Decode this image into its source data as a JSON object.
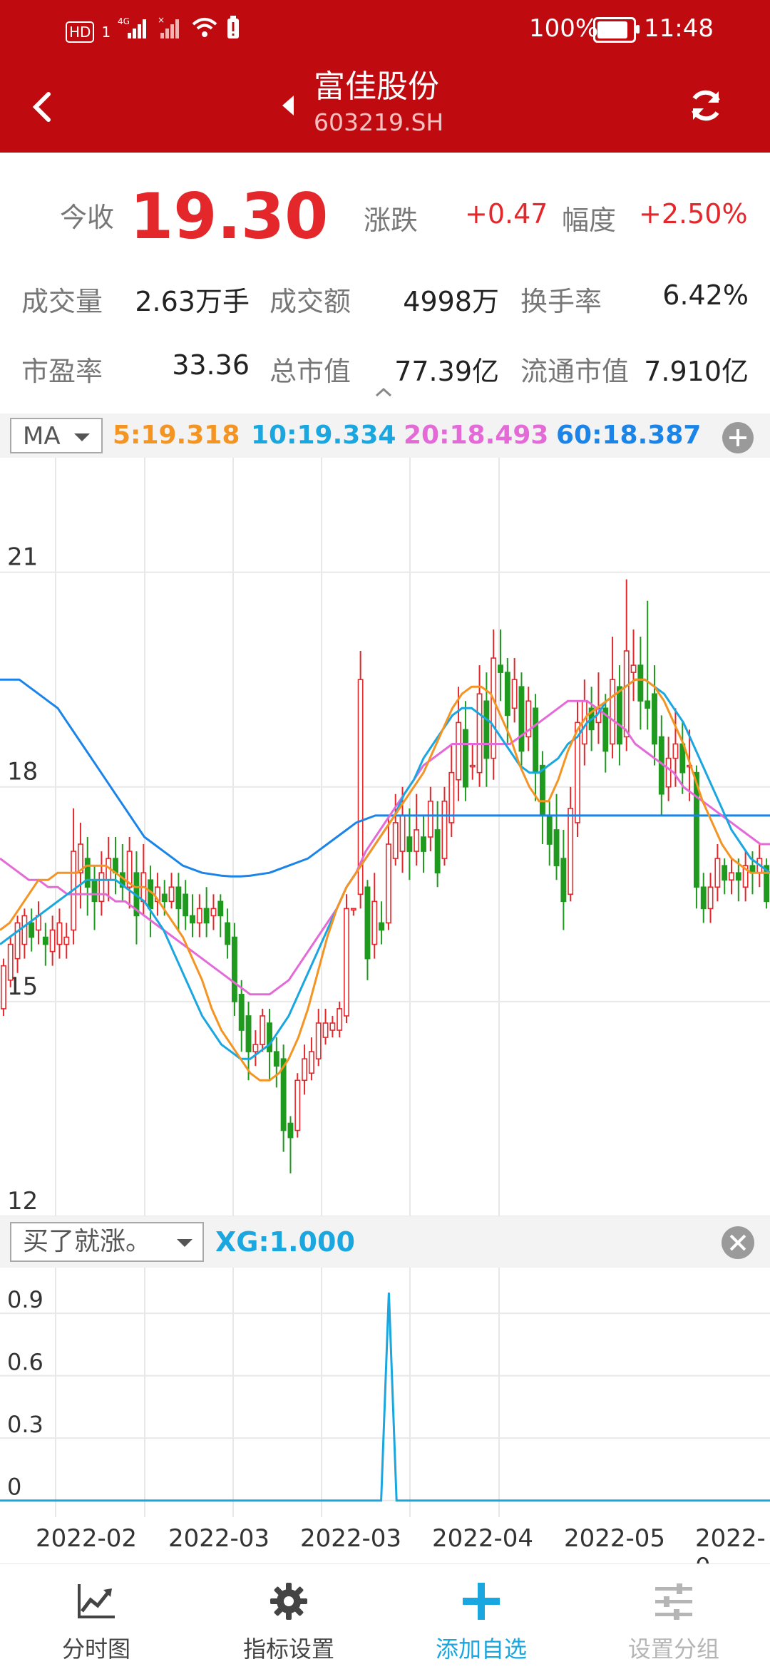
{
  "status_bar": {
    "battery_pct": "100%",
    "battery_level": 1.0,
    "time": "11:48",
    "left_icons": [
      "HD",
      "1",
      "4G",
      "signal-icon",
      "signal-icon",
      "wifi-icon",
      "battery-alert-icon"
    ]
  },
  "header": {
    "title": "富佳股份",
    "code": "603219.SH"
  },
  "quote": {
    "close_label": "今收",
    "close_value": "19.30",
    "change_label": "涨跌",
    "change_value": "+0.47",
    "pct_label": "幅度",
    "pct_value": "+2.50%",
    "vol_label": "成交量",
    "vol_value": "2.63万手",
    "amt_label": "成交额",
    "amt_value": "4998万",
    "turnover_label": "换手率",
    "turnover_value": "6.42%",
    "pe_label": "市盈率",
    "pe_value": "33.36",
    "mcap_label": "总市值",
    "mcap_value": "77.39亿",
    "float_label": "流通市值",
    "float_value": "7.910亿"
  },
  "ma_bar": {
    "selector": "MA",
    "ma5": "5:19.318",
    "ma10": "10:19.334",
    "ma20": "20:18.493",
    "ma60": "60:18.387",
    "colors": {
      "ma5": "#f39423",
      "ma10": "#1aa6df",
      "ma20": "#e46ad8",
      "ma60": "#1b84e8"
    }
  },
  "xg_bar": {
    "selector": "买了就涨。",
    "value": "XG:1.000"
  },
  "colors": {
    "header_bg": "#bf0a10",
    "up": "#e4272b",
    "down": "#1f9a1f"
  },
  "chart_data": [
    {
      "type": "candlestick",
      "yticks": [
        "21",
        "18",
        "15",
        "12"
      ],
      "ylim": [
        12,
        22.6
      ],
      "grid": true,
      "candles": [
        [
          14.9,
          15.5,
          14.8,
          15.6
        ],
        [
          15.3,
          15.8,
          15.2,
          15.9
        ],
        [
          15.6,
          16.1,
          15.4,
          16.2
        ],
        [
          15.8,
          16.2,
          15.6,
          16.3
        ],
        [
          16.1,
          15.9,
          15.7,
          16.3
        ],
        [
          16.0,
          16.2,
          15.8,
          16.4
        ],
        [
          15.9,
          15.8,
          15.5,
          16.1
        ],
        [
          15.7,
          16.0,
          15.5,
          16.2
        ],
        [
          15.8,
          16.1,
          15.6,
          16.3
        ],
        [
          15.8,
          15.9,
          15.6,
          16.1
        ],
        [
          16.0,
          17.1,
          15.8,
          17.7
        ],
        [
          16.8,
          17.2,
          16.3,
          17.5
        ],
        [
          17.0,
          16.6,
          16.2,
          17.3
        ],
        [
          16.7,
          16.4,
          16.0,
          16.9
        ],
        [
          16.4,
          16.8,
          16.2,
          17.1
        ],
        [
          16.7,
          17.0,
          16.4,
          17.3
        ],
        [
          17.0,
          16.8,
          16.5,
          17.3
        ],
        [
          16.8,
          16.6,
          16.4,
          17.2
        ],
        [
          16.6,
          17.1,
          16.3,
          17.3
        ],
        [
          16.8,
          16.2,
          15.8,
          17.1
        ],
        [
          16.4,
          16.8,
          16.2,
          17.2
        ],
        [
          16.7,
          16.3,
          15.9,
          16.9
        ],
        [
          16.4,
          16.6,
          16.2,
          16.8
        ],
        [
          16.5,
          16.4,
          16.2,
          16.7
        ],
        [
          16.4,
          16.6,
          16.3,
          16.8
        ],
        [
          16.6,
          16.3,
          16.0,
          16.8
        ],
        [
          16.5,
          16.2,
          16.0,
          16.7
        ],
        [
          16.2,
          16.1,
          15.9,
          16.5
        ],
        [
          16.1,
          16.3,
          15.9,
          16.5
        ],
        [
          16.3,
          16.1,
          15.9,
          16.6
        ],
        [
          16.2,
          16.3,
          16.0,
          16.5
        ],
        [
          16.4,
          16.2,
          15.9,
          16.5
        ],
        [
          16.1,
          15.8,
          15.6,
          16.3
        ],
        [
          15.9,
          15.0,
          14.8,
          16.1
        ],
        [
          15.1,
          14.6,
          14.3,
          15.3
        ],
        [
          14.8,
          14.3,
          13.9,
          15.0
        ],
        [
          14.3,
          14.4,
          14.1,
          14.6
        ],
        [
          14.4,
          14.8,
          14.3,
          14.9
        ],
        [
          14.7,
          14.3,
          13.9,
          14.9
        ],
        [
          14.3,
          14.1,
          13.8,
          14.5
        ],
        [
          14.2,
          13.2,
          12.9,
          14.4
        ],
        [
          13.3,
          13.1,
          12.6,
          13.4
        ],
        [
          13.2,
          13.9,
          13.1,
          14.0
        ],
        [
          13.9,
          14.2,
          13.7,
          14.4
        ],
        [
          14.0,
          14.3,
          13.9,
          14.5
        ],
        [
          14.2,
          14.7,
          14.1,
          14.9
        ],
        [
          14.5,
          14.7,
          14.4,
          14.9
        ],
        [
          14.6,
          14.7,
          14.5,
          14.8
        ],
        [
          14.6,
          14.9,
          14.5,
          15.0
        ],
        [
          14.8,
          16.3,
          14.7,
          16.5
        ],
        [
          16.3,
          16.3,
          16.2,
          16.3
        ],
        [
          16.5,
          19.5,
          16.3,
          19.9
        ],
        [
          16.6,
          15.6,
          15.3,
          16.7
        ],
        [
          15.8,
          16.4,
          15.6,
          16.8
        ],
        [
          16.1,
          16.0,
          15.8,
          16.4
        ],
        [
          16.1,
          17.2,
          16.0,
          17.6
        ],
        [
          17.0,
          17.5,
          16.9,
          17.9
        ],
        [
          17.1,
          17.6,
          16.8,
          18.0
        ],
        [
          17.3,
          17.1,
          16.7,
          17.7
        ],
        [
          17.1,
          17.4,
          16.9,
          17.9
        ],
        [
          17.3,
          17.1,
          16.8,
          17.6
        ],
        [
          17.3,
          17.8,
          17.1,
          18.0
        ],
        [
          17.4,
          16.8,
          16.6,
          17.8
        ],
        [
          17.0,
          17.8,
          16.9,
          18.0
        ],
        [
          17.5,
          18.2,
          17.3,
          18.6
        ],
        [
          18.1,
          18.9,
          17.8,
          19.4
        ],
        [
          18.8,
          18.0,
          17.8,
          19.2
        ],
        [
          18.3,
          18.3,
          18.1,
          18.6
        ],
        [
          18.2,
          19.3,
          18.0,
          19.7
        ],
        [
          19.2,
          18.4,
          18.0,
          19.6
        ],
        [
          18.4,
          19.8,
          18.1,
          20.2
        ],
        [
          19.7,
          19.6,
          19.2,
          20.2
        ],
        [
          19.6,
          19.0,
          18.6,
          19.8
        ],
        [
          19.1,
          19.5,
          18.9,
          19.8
        ],
        [
          19.4,
          18.5,
          18.3,
          19.6
        ],
        [
          18.7,
          19.2,
          18.5,
          19.4
        ],
        [
          19.1,
          18.2,
          17.8,
          19.3
        ],
        [
          18.3,
          17.6,
          17.2,
          18.5
        ],
        [
          17.6,
          17.2,
          16.9,
          17.8
        ],
        [
          17.4,
          16.9,
          16.7,
          17.9
        ],
        [
          17.0,
          16.4,
          16.0,
          17.4
        ],
        [
          16.5,
          17.7,
          16.4,
          18.0
        ],
        [
          17.5,
          18.9,
          17.3,
          19.2
        ],
        [
          18.6,
          19.2,
          18.3,
          19.5
        ],
        [
          19.1,
          18.8,
          18.5,
          19.4
        ],
        [
          18.9,
          19.1,
          18.6,
          19.6
        ],
        [
          19.1,
          18.5,
          18.2,
          19.3
        ],
        [
          18.6,
          19.5,
          18.4,
          20.1
        ],
        [
          19.4,
          18.6,
          18.3,
          19.7
        ],
        [
          18.7,
          19.9,
          18.5,
          20.9
        ],
        [
          19.6,
          19.7,
          19.2,
          20.2
        ],
        [
          19.7,
          19.2,
          18.8,
          20.1
        ],
        [
          19.2,
          19.1,
          18.8,
          20.6
        ],
        [
          19.3,
          18.6,
          18.3,
          19.7
        ],
        [
          18.7,
          17.9,
          17.6,
          19.0
        ],
        [
          18.0,
          18.4,
          17.8,
          18.7
        ],
        [
          18.4,
          18.6,
          18.0,
          19.1
        ],
        [
          18.6,
          18.2,
          17.9,
          18.9
        ],
        [
          18.3,
          18.3,
          17.8,
          18.8
        ],
        [
          18.2,
          16.6,
          16.3,
          18.3
        ],
        [
          16.6,
          16.3,
          16.1,
          16.8
        ],
        [
          16.3,
          16.6,
          16.1,
          16.8
        ],
        [
          16.6,
          17.0,
          16.4,
          17.2
        ],
        [
          16.9,
          16.7,
          16.5,
          17.0
        ],
        [
          16.7,
          16.8,
          16.5,
          17.0
        ],
        [
          16.8,
          16.7,
          16.4,
          17.0
        ],
        [
          16.6,
          16.9,
          16.4,
          17.1
        ],
        [
          16.9,
          16.8,
          16.5,
          17.1
        ],
        [
          16.8,
          17.0,
          16.6,
          17.2
        ],
        [
          16.9,
          16.4,
          16.3,
          17.0
        ]
      ],
      "ma5": [
        16.0,
        16.1,
        16.3,
        16.5,
        16.7,
        16.7,
        16.8,
        16.8,
        16.8,
        16.9,
        16.9,
        16.9,
        16.8,
        16.7,
        16.6,
        16.6,
        16.5,
        16.3,
        16.1,
        15.9,
        15.6,
        15.3,
        14.9,
        14.6,
        14.4,
        14.2,
        14.0,
        13.9,
        13.9,
        14.0,
        14.2,
        14.5,
        14.9,
        15.4,
        15.9,
        16.3,
        16.6,
        16.8,
        17.0,
        17.2,
        17.4,
        17.6,
        17.8,
        18.0,
        18.2,
        18.5,
        18.8,
        19.1,
        19.3,
        19.4,
        19.4,
        19.3,
        19.0,
        18.7,
        18.3,
        18.0,
        17.8,
        17.8,
        18.1,
        18.5,
        18.8,
        19.0,
        19.1,
        19.2,
        19.3,
        19.4,
        19.5,
        19.5,
        19.4,
        19.2,
        18.9,
        18.6,
        18.2,
        17.8,
        17.5,
        17.2,
        17.0,
        16.9,
        16.8,
        16.8,
        16.8
      ],
      "ma10": [
        15.8,
        15.9,
        16.0,
        16.1,
        16.2,
        16.3,
        16.4,
        16.5,
        16.6,
        16.7,
        16.7,
        16.7,
        16.7,
        16.6,
        16.5,
        16.4,
        16.2,
        16.0,
        15.7,
        15.4,
        15.1,
        14.8,
        14.6,
        14.4,
        14.3,
        14.2,
        14.2,
        14.3,
        14.4,
        14.6,
        14.8,
        15.1,
        15.4,
        15.7,
        16.0,
        16.3,
        16.6,
        16.8,
        17.0,
        17.2,
        17.4,
        17.6,
        17.9,
        18.1,
        18.4,
        18.6,
        18.8,
        19.0,
        19.1,
        19.1,
        19.0,
        18.9,
        18.7,
        18.5,
        18.3,
        18.2,
        18.2,
        18.3,
        18.4,
        18.6,
        18.7,
        18.9,
        19.0,
        19.2,
        19.3,
        19.4,
        19.5,
        19.5,
        19.4,
        19.3,
        19.1,
        18.9,
        18.6,
        18.3,
        18.0,
        17.7,
        17.4,
        17.2,
        17.0,
        16.9,
        16.8
      ],
      "ma20": [
        17.0,
        16.9,
        16.8,
        16.7,
        16.7,
        16.6,
        16.6,
        16.5,
        16.5,
        16.5,
        16.5,
        16.5,
        16.4,
        16.4,
        16.3,
        16.2,
        16.1,
        16.0,
        15.9,
        15.8,
        15.7,
        15.6,
        15.5,
        15.4,
        15.3,
        15.2,
        15.1,
        15.1,
        15.1,
        15.2,
        15.3,
        15.5,
        15.7,
        15.9,
        16.1,
        16.3,
        16.6,
        16.8,
        17.1,
        17.3,
        17.5,
        17.7,
        17.9,
        18.1,
        18.3,
        18.4,
        18.5,
        18.6,
        18.6,
        18.6,
        18.6,
        18.6,
        18.6,
        18.6,
        18.7,
        18.8,
        18.9,
        19.0,
        19.1,
        19.2,
        19.2,
        19.2,
        19.1,
        19.0,
        18.9,
        18.8,
        18.6,
        18.5,
        18.4,
        18.3,
        18.2,
        18.0,
        17.9,
        17.8,
        17.7,
        17.6,
        17.5,
        17.4,
        17.3,
        17.2,
        17.2
      ],
      "ma60": [
        19.5,
        19.5,
        19.5,
        19.4,
        19.3,
        19.2,
        19.1,
        18.9,
        18.7,
        18.5,
        18.3,
        18.1,
        17.9,
        17.7,
        17.5,
        17.3,
        17.2,
        17.1,
        17.0,
        16.9,
        16.85,
        16.8,
        16.78,
        16.76,
        16.75,
        16.75,
        16.76,
        16.78,
        16.8,
        16.85,
        16.9,
        16.95,
        17.0,
        17.1,
        17.2,
        17.3,
        17.4,
        17.5,
        17.55,
        17.6,
        17.6,
        17.6,
        17.6,
        17.6,
        17.6,
        17.6,
        17.6,
        17.6,
        17.6,
        17.6,
        17.6,
        17.6,
        17.6,
        17.6,
        17.6,
        17.6,
        17.6,
        17.6,
        17.6,
        17.6,
        17.6,
        17.6,
        17.6,
        17.6,
        17.6,
        17.6,
        17.6,
        17.6,
        17.6,
        17.6,
        17.6,
        17.6,
        17.6,
        17.6,
        17.6,
        17.6,
        17.6,
        17.6,
        17.6,
        17.6,
        17.6
      ]
    },
    {
      "type": "line",
      "series": [
        {
          "name": "XG",
          "color": "#1aa6df"
        }
      ],
      "yticks": [
        "0.9",
        "0.6",
        "0.3",
        "0"
      ],
      "ylim": [
        -0.08,
        1.12
      ],
      "pulse_index": 50,
      "values_count": 100
    }
  ],
  "x_labels": [
    "2022-02",
    "2022-03",
    "2022-03",
    "2022-04",
    "2022-05",
    "2022-0"
  ],
  "bottom_nav": [
    {
      "label": "分时图",
      "icon": "line-chart-icon",
      "color": "#444444"
    },
    {
      "label": "指标设置",
      "icon": "gear-icon",
      "color": "#444444"
    },
    {
      "label": "添加自选",
      "icon": "plus-icon",
      "color": "#1aa6df"
    },
    {
      "label": "设置分组",
      "icon": "sliders-icon",
      "color": "#b5b5b5"
    }
  ]
}
